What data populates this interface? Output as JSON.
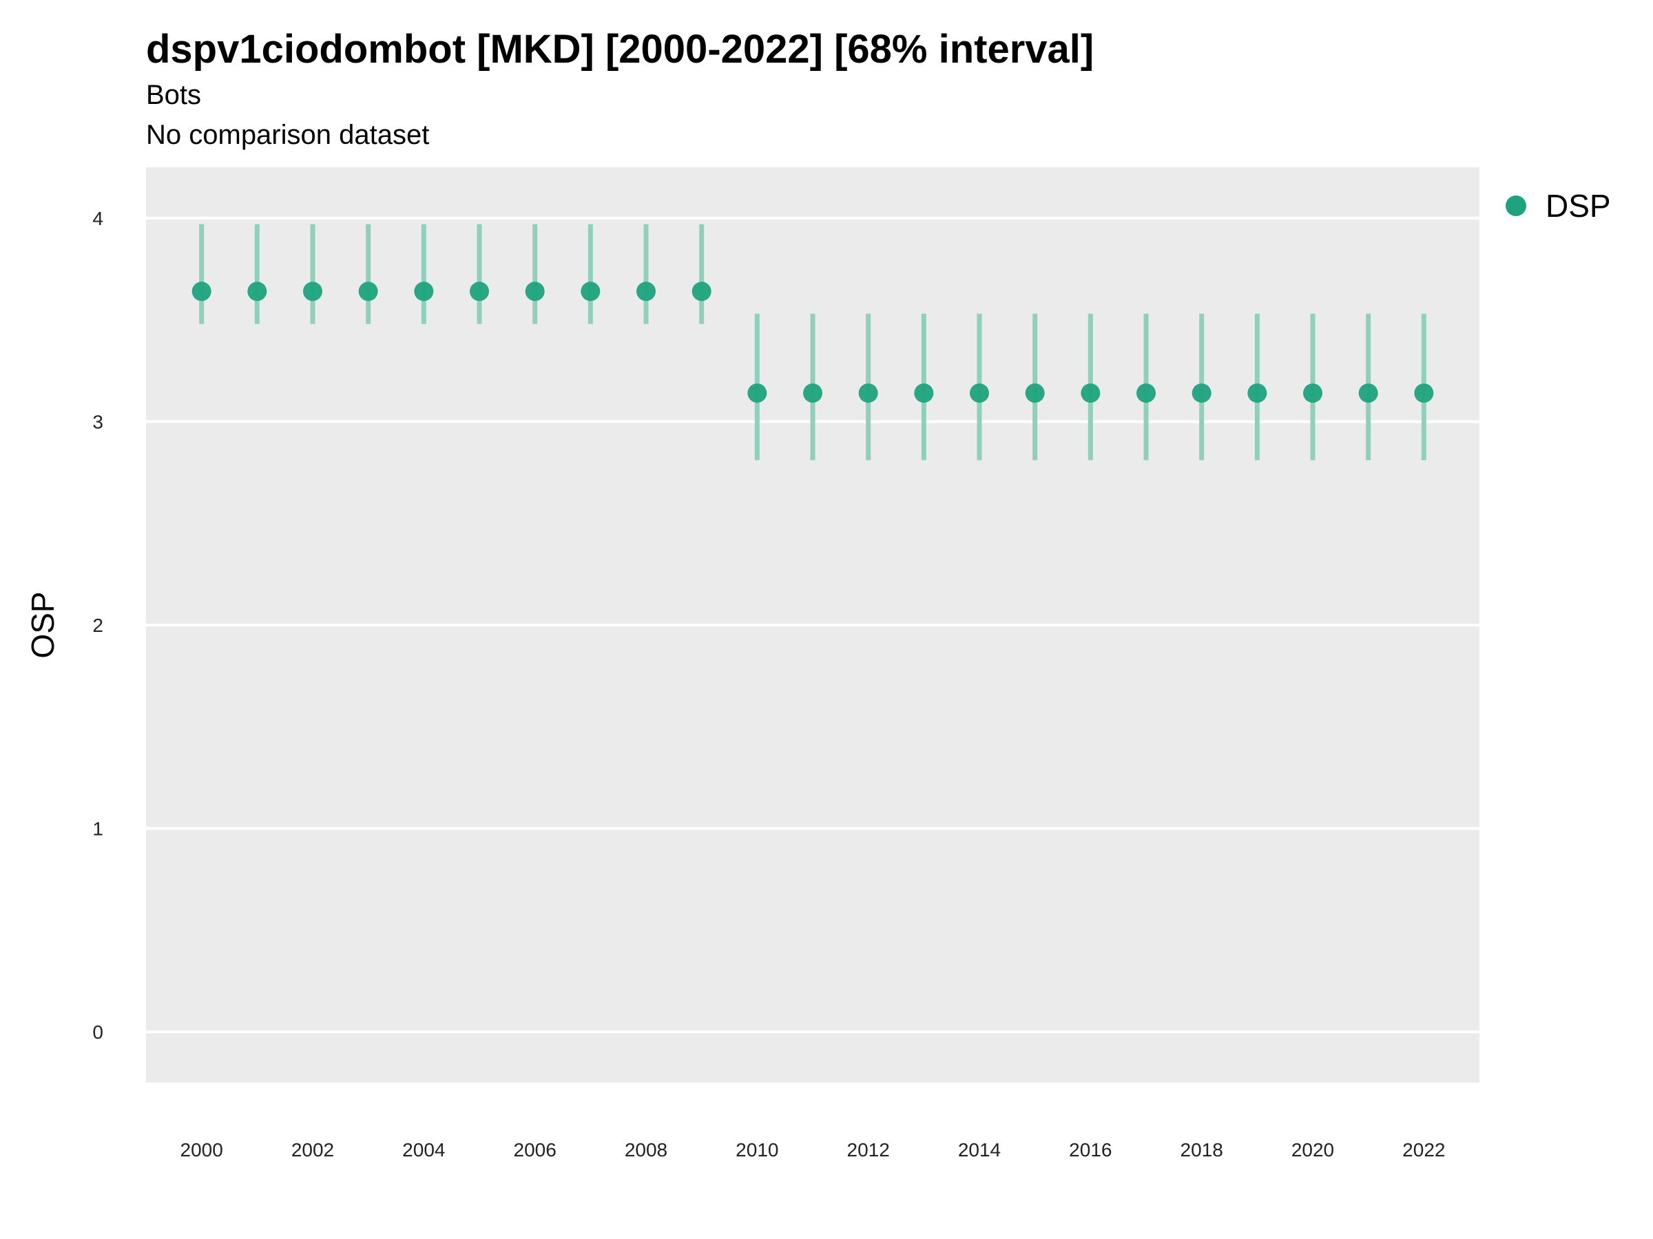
{
  "title": "dspv1ciodombot [MKD] [2000-2022] [68% interval]",
  "subtitle": "Bots",
  "subtitle2": "No comparison dataset",
  "colors": {
    "point": "#1fa37f",
    "interval": "#8fcfbb",
    "panel": "#ebebeb",
    "grid": "#ffffff"
  },
  "chart_data": {
    "type": "scatter",
    "ylabel": "OSP",
    "xlabel": "",
    "ylim": [
      -0.25,
      4.25
    ],
    "y_ticks": [
      0,
      1,
      2,
      3,
      4
    ],
    "x_ticks": [
      2000,
      2002,
      2004,
      2006,
      2008,
      2010,
      2012,
      2014,
      2016,
      2018,
      2020,
      2022
    ],
    "xlim": [
      1999,
      2023
    ],
    "grid": true,
    "legend_position": "right",
    "series": [
      {
        "name": "DSP",
        "x": [
          2000,
          2001,
          2002,
          2003,
          2004,
          2005,
          2006,
          2007,
          2008,
          2009,
          2010,
          2011,
          2012,
          2013,
          2014,
          2015,
          2016,
          2017,
          2018,
          2019,
          2020,
          2021,
          2022
        ],
        "y": [
          3.64,
          3.64,
          3.64,
          3.64,
          3.64,
          3.64,
          3.64,
          3.64,
          3.64,
          3.64,
          3.14,
          3.14,
          3.14,
          3.14,
          3.14,
          3.14,
          3.14,
          3.14,
          3.14,
          3.14,
          3.14,
          3.14,
          3.14
        ],
        "lower": [
          3.48,
          3.48,
          3.48,
          3.48,
          3.48,
          3.48,
          3.48,
          3.48,
          3.48,
          3.48,
          2.81,
          2.81,
          2.81,
          2.81,
          2.81,
          2.81,
          2.81,
          2.81,
          2.81,
          2.81,
          2.81,
          2.81,
          2.81
        ],
        "upper": [
          3.97,
          3.97,
          3.97,
          3.97,
          3.97,
          3.97,
          3.97,
          3.97,
          3.97,
          3.97,
          3.53,
          3.53,
          3.53,
          3.53,
          3.53,
          3.53,
          3.53,
          3.53,
          3.53,
          3.53,
          3.53,
          3.53,
          3.53
        ]
      }
    ]
  }
}
